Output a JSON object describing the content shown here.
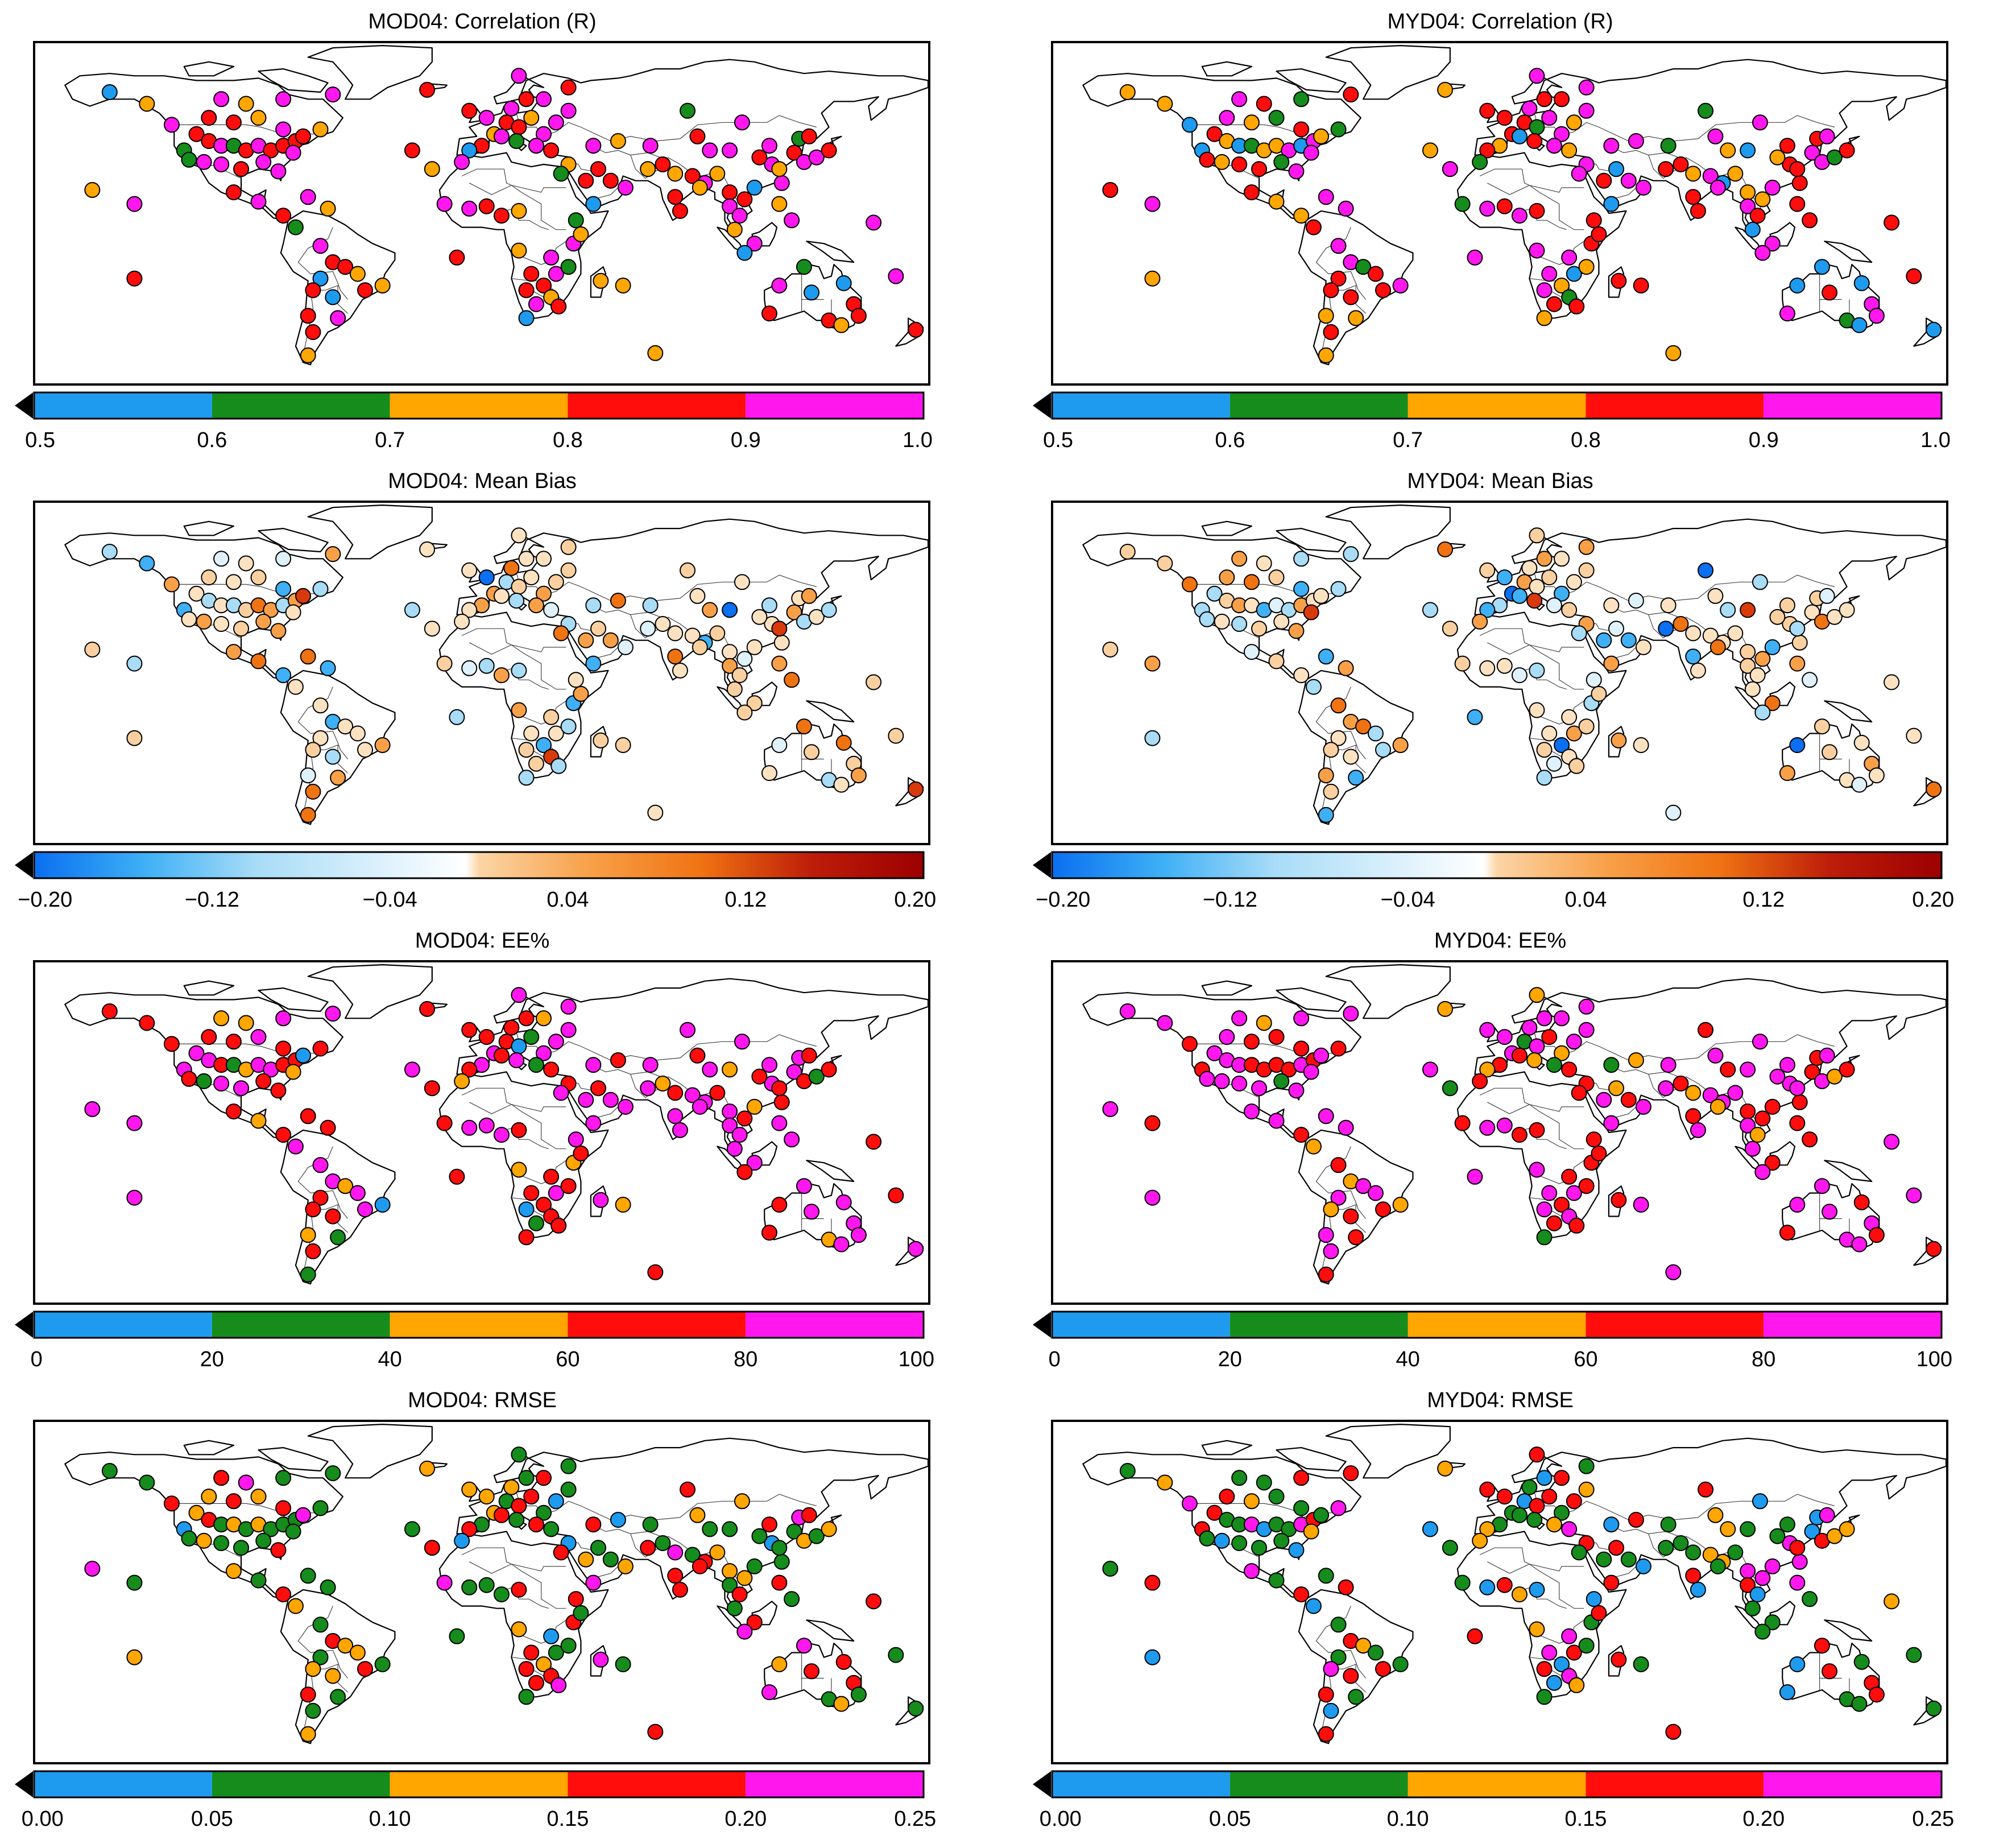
{
  "panels": [
    {
      "id": "mod04-r",
      "title": "MOD04: Correlation (R)",
      "colorbar": {
        "type": "discrete",
        "colors": [
          "#1e9bef",
          "#158c1c",
          "#ffa600",
          "#ff0d0d",
          "#ff17ee"
        ],
        "ticks": [
          "0.5",
          "0.6",
          "0.7",
          "0.8",
          "0.9",
          "1.0"
        ]
      }
    },
    {
      "id": "myd04-r",
      "title": "MYD04: Correlation (R)",
      "colorbar": {
        "type": "discrete",
        "colors": [
          "#1e9bef",
          "#158c1c",
          "#ffa600",
          "#ff0d0d",
          "#ff17ee"
        ],
        "ticks": [
          "0.5",
          "0.6",
          "0.7",
          "0.8",
          "0.9",
          "1.0"
        ]
      }
    },
    {
      "id": "mod04-bias",
      "title": "MOD04: Mean Bias",
      "colorbar": {
        "type": "gradient",
        "colors": [
          "#0a6ff0",
          "#3fb0f5",
          "#a8dcf7",
          "#ffffff",
          "#fbd5a6",
          "#f8a048",
          "#f07312",
          "#bd1d09",
          "#9c0000"
        ],
        "ticks": [
          "−0.20",
          "−0.12",
          "−0.04",
          "0.04",
          "0.12",
          "0.20"
        ]
      }
    },
    {
      "id": "myd04-bias",
      "title": "MYD04: Mean Bias",
      "colorbar": {
        "type": "gradient",
        "colors": [
          "#0a6ff0",
          "#3fb0f5",
          "#a8dcf7",
          "#ffffff",
          "#fbd5a6",
          "#f8a048",
          "#f07312",
          "#bd1d09",
          "#9c0000"
        ],
        "ticks": [
          "−0.20",
          "−0.12",
          "−0.04",
          "0.04",
          "0.12",
          "0.20"
        ]
      }
    },
    {
      "id": "mod04-ee",
      "title": "MOD04: EE%",
      "colorbar": {
        "type": "discrete",
        "colors": [
          "#1e9bef",
          "#158c1c",
          "#ffa600",
          "#ff0d0d",
          "#ff17ee"
        ],
        "ticks": [
          "0",
          "20",
          "40",
          "60",
          "80",
          "100"
        ]
      }
    },
    {
      "id": "myd04-ee",
      "title": "MYD04: EE%",
      "colorbar": {
        "type": "discrete",
        "colors": [
          "#1e9bef",
          "#158c1c",
          "#ffa600",
          "#ff0d0d",
          "#ff17ee"
        ],
        "ticks": [
          "0",
          "20",
          "40",
          "60",
          "80",
          "100"
        ]
      }
    },
    {
      "id": "mod04-rmse",
      "title": "MOD04: RMSE",
      "colorbar": {
        "type": "discrete",
        "colors": [
          "#1e9bef",
          "#158c1c",
          "#ffa600",
          "#ff0d0d",
          "#ff17ee"
        ],
        "ticks": [
          "0.00",
          "0.05",
          "0.10",
          "0.15",
          "0.20",
          "0.25"
        ]
      }
    },
    {
      "id": "myd04-rmse",
      "title": "MYD04: RMSE",
      "colorbar": {
        "type": "discrete",
        "colors": [
          "#1e9bef",
          "#158c1c",
          "#ffa600",
          "#ff0d0d",
          "#ff17ee"
        ],
        "ticks": [
          "0.00",
          "0.05",
          "0.10",
          "0.15",
          "0.20",
          "0.25"
        ]
      }
    }
  ],
  "sites": [
    {
      "lon": -115,
      "lat": 45
    },
    {
      "lon": -110,
      "lat": 42
    },
    {
      "lon": -105,
      "lat": 40
    },
    {
      "lon": -100,
      "lat": 40
    },
    {
      "lon": -95,
      "lat": 38
    },
    {
      "lon": -90,
      "lat": 40
    },
    {
      "lon": -85,
      "lat": 38
    },
    {
      "lon": -80,
      "lat": 40
    },
    {
      "lon": -75,
      "lat": 42
    },
    {
      "lon": -120,
      "lat": 38
    },
    {
      "lon": -118,
      "lat": 34
    },
    {
      "lon": -112,
      "lat": 33
    },
    {
      "lon": -105,
      "lat": 32
    },
    {
      "lon": -97,
      "lat": 30
    },
    {
      "lon": -88,
      "lat": 33
    },
    {
      "lon": -82,
      "lat": 29
    },
    {
      "lon": -76,
      "lat": 37
    },
    {
      "lon": -72,
      "lat": 44
    },
    {
      "lon": -65,
      "lat": 47
    },
    {
      "lon": -110,
      "lat": 52
    },
    {
      "lon": -100,
      "lat": 50
    },
    {
      "lon": -90,
      "lat": 52
    },
    {
      "lon": -80,
      "lat": 47
    },
    {
      "lon": -125,
      "lat": 49
    },
    {
      "lon": -135,
      "lat": 58
    },
    {
      "lon": -150,
      "lat": 63
    },
    {
      "lon": -105,
      "lat": 60
    },
    {
      "lon": -95,
      "lat": 58
    },
    {
      "lon": -80,
      "lat": 60
    },
    {
      "lon": -60,
      "lat": 62
    },
    {
      "lon": -157,
      "lat": 21
    },
    {
      "lon": -140,
      "lat": 15
    },
    {
      "lon": -100,
      "lat": 20
    },
    {
      "lon": -90,
      "lat": 16
    },
    {
      "lon": -80,
      "lat": 10
    },
    {
      "lon": -70,
      "lat": 18
    },
    {
      "lon": -62,
      "lat": 13
    },
    {
      "lon": -75,
      "lat": 5
    },
    {
      "lon": -65,
      "lat": -3
    },
    {
      "lon": -60,
      "lat": -10
    },
    {
      "lon": -55,
      "lat": -12
    },
    {
      "lon": -50,
      "lat": -15
    },
    {
      "lon": -47,
      "lat": -22
    },
    {
      "lon": -40,
      "lat": -20
    },
    {
      "lon": -65,
      "lat": -17
    },
    {
      "lon": -68,
      "lat": -22
    },
    {
      "lon": -60,
      "lat": -25
    },
    {
      "lon": -58,
      "lat": -34
    },
    {
      "lon": -70,
      "lat": -33
    },
    {
      "lon": -68,
      "lat": -40
    },
    {
      "lon": -70,
      "lat": -50
    },
    {
      "lon": -140,
      "lat": -17
    },
    {
      "lon": -20,
      "lat": 30
    },
    {
      "lon": -15,
      "lat": 15
    },
    {
      "lon": -5,
      "lat": 13
    },
    {
      "lon": 2,
      "lat": 14
    },
    {
      "lon": 8,
      "lat": 10
    },
    {
      "lon": 15,
      "lat": 12
    },
    {
      "lon": 0,
      "lat": 40
    },
    {
      "lon": -5,
      "lat": 38
    },
    {
      "lon": -8,
      "lat": 33
    },
    {
      "lon": 5,
      "lat": 45
    },
    {
      "lon": 10,
      "lat": 50
    },
    {
      "lon": 15,
      "lat": 48
    },
    {
      "lon": 20,
      "lat": 52
    },
    {
      "lon": 25,
      "lat": 45
    },
    {
      "lon": 30,
      "lat": 50
    },
    {
      "lon": 35,
      "lat": 55
    },
    {
      "lon": 2,
      "lat": 52
    },
    {
      "lon": 12,
      "lat": 56
    },
    {
      "lon": 18,
      "lat": 60
    },
    {
      "lon": 25,
      "lat": 60
    },
    {
      "lon": 35,
      "lat": 65
    },
    {
      "lon": 8,
      "lat": 44
    },
    {
      "lon": 14,
      "lat": 42
    },
    {
      "lon": 22,
      "lat": 40
    },
    {
      "lon": 28,
      "lat": 38
    },
    {
      "lon": 35,
      "lat": 32
    },
    {
      "lon": 32,
      "lat": 28
    },
    {
      "lon": 42,
      "lat": 25
    },
    {
      "lon": 47,
      "lat": 30
    },
    {
      "lon": 52,
      "lat": 25
    },
    {
      "lon": 58,
      "lat": 22
    },
    {
      "lon": 45,
      "lat": 15
    },
    {
      "lon": 38,
      "lat": 8
    },
    {
      "lon": 45,
      "lat": 40
    },
    {
      "lon": 55,
      "lat": 42
    },
    {
      "lon": 68,
      "lat": 40
    },
    {
      "lon": 67,
      "lat": 30
    },
    {
      "lon": 73,
      "lat": 32
    },
    {
      "lon": 78,
      "lat": 28
    },
    {
      "lon": 85,
      "lat": 27
    },
    {
      "lon": 90,
      "lat": 24
    },
    {
      "lon": 78,
      "lat": 18
    },
    {
      "lon": 80,
      "lat": 12
    },
    {
      "lon": 88,
      "lat": 22
    },
    {
      "lon": 95,
      "lat": 28
    },
    {
      "lon": 100,
      "lat": 20
    },
    {
      "lon": 100,
      "lat": 14
    },
    {
      "lon": 106,
      "lat": 17
    },
    {
      "lon": 110,
      "lat": 22
    },
    {
      "lon": 104,
      "lat": 10
    },
    {
      "lon": 102,
      "lat": 4
    },
    {
      "lon": 110,
      "lat": -2
    },
    {
      "lon": 106,
      "lat": -6
    },
    {
      "lon": 120,
      "lat": 15
    },
    {
      "lon": 121,
      "lat": 24
    },
    {
      "lon": 116,
      "lat": 40
    },
    {
      "lon": 117,
      "lat": 32
    },
    {
      "lon": 120,
      "lat": 30
    },
    {
      "lon": 126,
      "lat": 37
    },
    {
      "lon": 130,
      "lat": 33
    },
    {
      "lon": 135,
      "lat": 35
    },
    {
      "lon": 140,
      "lat": 38
    },
    {
      "lon": 128,
      "lat": 43
    },
    {
      "lon": 105,
      "lat": 50
    },
    {
      "lon": 87,
      "lat": 44
    },
    {
      "lon": 83,
      "lat": 55
    },
    {
      "lon": 92,
      "lat": 38
    },
    {
      "lon": 100,
      "lat": 38
    },
    {
      "lon": 112,
      "lat": 35
    },
    {
      "lon": 132,
      "lat": 44
    },
    {
      "lon": 125,
      "lat": 8
    },
    {
      "lon": 130,
      "lat": -12
    },
    {
      "lon": 120,
      "lat": -20
    },
    {
      "lon": 133,
      "lat": -23
    },
    {
      "lon": 146,
      "lat": -19
    },
    {
      "lon": 150,
      "lat": -28
    },
    {
      "lon": 140,
      "lat": -35
    },
    {
      "lon": 145,
      "lat": -37
    },
    {
      "lon": 152,
      "lat": -33
    },
    {
      "lon": 116,
      "lat": -32
    },
    {
      "lon": 175,
      "lat": -39
    },
    {
      "lon": 167,
      "lat": -16
    },
    {
      "lon": 158,
      "lat": 7
    },
    {
      "lon": 15,
      "lat": -5
    },
    {
      "lon": 28,
      "lat": -8
    },
    {
      "lon": 20,
      "lat": -15
    },
    {
      "lon": 30,
      "lat": -15
    },
    {
      "lon": 25,
      "lat": -20
    },
    {
      "lon": 18,
      "lat": -22
    },
    {
      "lon": 28,
      "lat": -25
    },
    {
      "lon": 31,
      "lat": -29
    },
    {
      "lon": 22,
      "lat": -28
    },
    {
      "lon": 18,
      "lat": -34
    },
    {
      "lon": 35,
      "lat": -12
    },
    {
      "lon": 37,
      "lat": -2
    },
    {
      "lon": 40,
      "lat": 2
    },
    {
      "lon": 57,
      "lat": -20
    },
    {
      "lon": 48,
      "lat": -18
    },
    {
      "lon": -10,
      "lat": -8
    },
    {
      "lon": -28,
      "lat": 38
    },
    {
      "lon": 70,
      "lat": -49
    },
    {
      "lon": -5,
      "lat": 55
    },
    {
      "lon": -22,
      "lat": 64
    },
    {
      "lon": 15,
      "lat": 70
    }
  ]
}
